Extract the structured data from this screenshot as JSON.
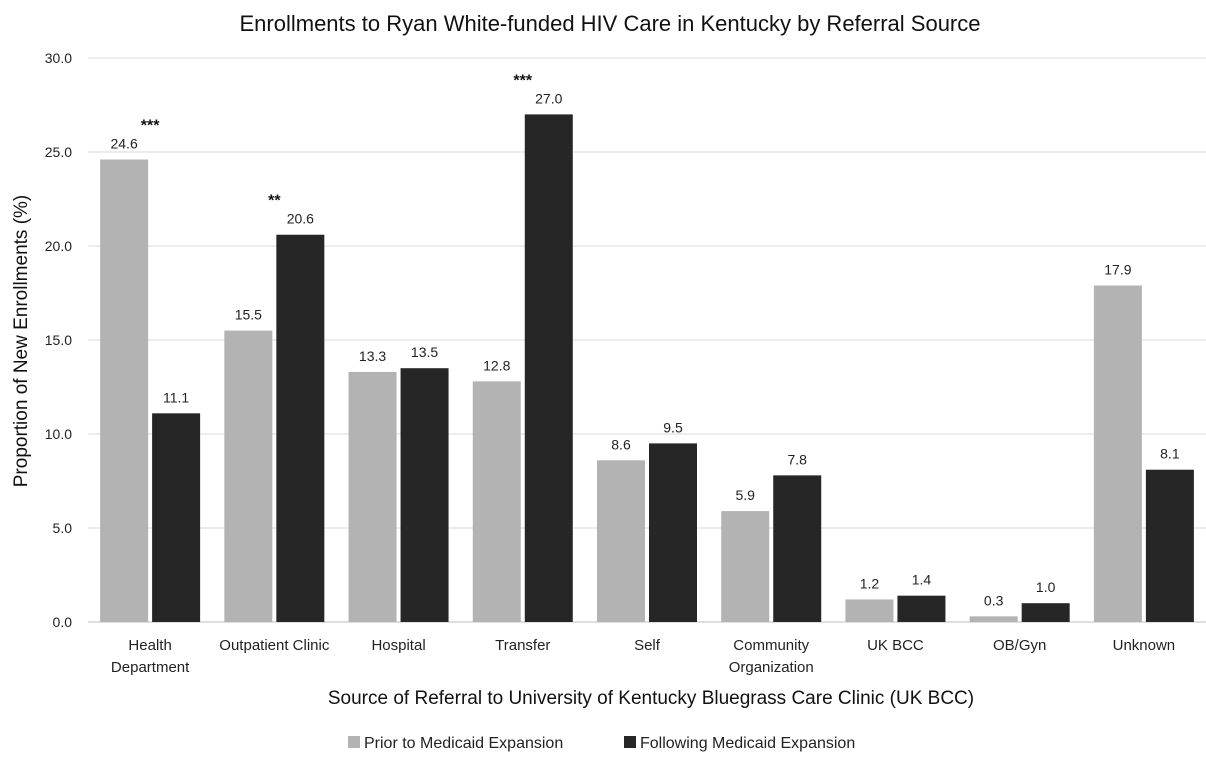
{
  "chart_data": {
    "type": "bar",
    "title": "Enrollments to Ryan White-funded HIV Care in Kentucky by Referral Source",
    "xlabel": "Source of Referral to University of Kentucky Bluegrass Care Clinic (UK BCC)",
    "ylabel": "Proportion of New Enrollments (%)",
    "ylim": [
      0,
      30
    ],
    "yticks": [
      "0.0",
      "5.0",
      "10.0",
      "15.0",
      "20.0",
      "25.0",
      "30.0"
    ],
    "grid": true,
    "legend_position": "bottom-center",
    "categories": [
      [
        "Health",
        "Department"
      ],
      [
        "Outpatient Clinic"
      ],
      [
        "Hospital"
      ],
      [
        "Transfer"
      ],
      [
        "Self"
      ],
      [
        "Community",
        "Organization"
      ],
      [
        "UK BCC"
      ],
      [
        "OB/Gyn"
      ],
      [
        "Unknown"
      ]
    ],
    "series": [
      {
        "name": "Prior to Medicaid Expansion",
        "color": "#b3b3b3",
        "values": [
          24.6,
          15.5,
          13.3,
          12.8,
          8.6,
          5.9,
          1.2,
          0.3,
          17.9
        ],
        "labels": [
          "24.6",
          "15.5",
          "13.3",
          "12.8",
          "8.6",
          "5.9",
          "1.2",
          "0.3",
          "17.9"
        ]
      },
      {
        "name": "Following Medicaid Expansion",
        "color": "#262626",
        "values": [
          11.1,
          20.6,
          13.5,
          27.0,
          9.5,
          7.8,
          1.4,
          1.0,
          8.1
        ],
        "labels": [
          "11.1",
          "20.6",
          "13.5",
          "27.0",
          "9.5",
          "7.8",
          "1.4",
          "1.0",
          "8.1"
        ]
      }
    ],
    "significance": [
      {
        "category_index": 0,
        "text": "***"
      },
      {
        "category_index": 1,
        "text": "**"
      },
      {
        "category_index": 3,
        "text": "***"
      }
    ]
  }
}
